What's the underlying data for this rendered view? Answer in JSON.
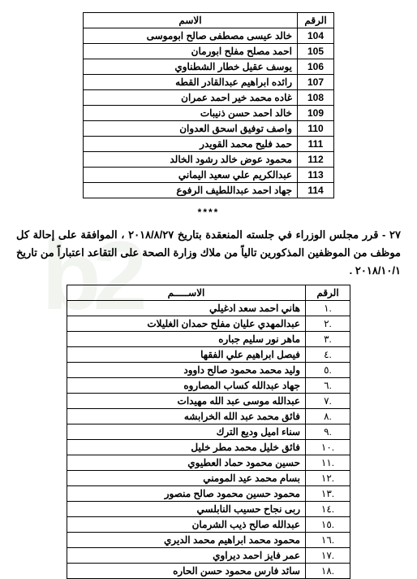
{
  "table1": {
    "headers": {
      "num": "الرقم",
      "name": "الاسم"
    },
    "rows": [
      {
        "num": "104",
        "name": "خالد عيسى مصطفى صالح ابوموسى"
      },
      {
        "num": "105",
        "name": "احمد مصلح مفلح ابورمان"
      },
      {
        "num": "106",
        "name": "يوسف عقيل خطار الشطناوي"
      },
      {
        "num": "107",
        "name": "رائده ابراهيم عبدالقادر القطه"
      },
      {
        "num": "108",
        "name": "غاده محمد خير احمد عمران"
      },
      {
        "num": "109",
        "name": "خالد احمد حسن ذنيبات"
      },
      {
        "num": "110",
        "name": "واصف توفيق اسحق العدوان"
      },
      {
        "num": "111",
        "name": "حمد فليح محمد القويدر"
      },
      {
        "num": "112",
        "name": "محمود عوض خالد رشود الخالد"
      },
      {
        "num": "113",
        "name": "عبدالكريم علي سعيد اليماني"
      },
      {
        "num": "114",
        "name": "جهاد احمد عبداللطيف الرفوع"
      }
    ]
  },
  "separator": "****",
  "paragraph": "٢٧ - قرر مجلس الوزراء في جلسته المنعقدة بتاريخ ٢٠١٨/٨/٢٧ ، الموافقة على إحالة كل موظف من الموظفين المذكورين تالياً من ملاك وزارة الصحة على التقاعد اعتباراً من تاريخ ٢٠١٨/١٠/١ .",
  "table2": {
    "headers": {
      "num": "الرقم",
      "name": "الاســـــم"
    },
    "rows": [
      {
        "num": ".١",
        "name": "هاني احمد سعد ادغيلي"
      },
      {
        "num": ".٢",
        "name": "عبدالمهدي عليان مفلح حمدان الغليلات"
      },
      {
        "num": ".٣",
        "name": "ماهر نور سليم جباره"
      },
      {
        "num": ".٤",
        "name": "فيصل ابراهيم علي الفقها"
      },
      {
        "num": ".٥",
        "name": "وليد محمد محمود صالح داوود"
      },
      {
        "num": ".٦",
        "name": "جهاد عبدالله كساب المصاروه"
      },
      {
        "num": ".٧",
        "name": "عبدالله موسى عبد الله مهيدات"
      },
      {
        "num": ".٨",
        "name": "فائق محمد عبد الله الخرابشه"
      },
      {
        "num": ".٩",
        "name": "سناء اميل وديع الترك"
      },
      {
        "num": ".١٠",
        "name": "فائق خليل محمد مطر خليل"
      },
      {
        "num": ".١١",
        "name": "حسين محمود حماد العطيوي"
      },
      {
        "num": ".١٢",
        "name": "بسام محمد عيد المومني"
      },
      {
        "num": ".١٣",
        "name": "محمود حسين محمود صالح منصور"
      },
      {
        "num": ".١٤",
        "name": "ربى نجاح حسيب النابلسي"
      },
      {
        "num": ".١٥",
        "name": "عبدالله صالح ذيب الشرمان"
      },
      {
        "num": ".١٦",
        "name": "محمود محمد ابراهيم محمد الديري"
      },
      {
        "num": ".١٧",
        "name": "عمر فايز احمد ديراوي"
      },
      {
        "num": ".١٨",
        "name": "سائد فارس محمود حسن الحاره"
      }
    ]
  }
}
